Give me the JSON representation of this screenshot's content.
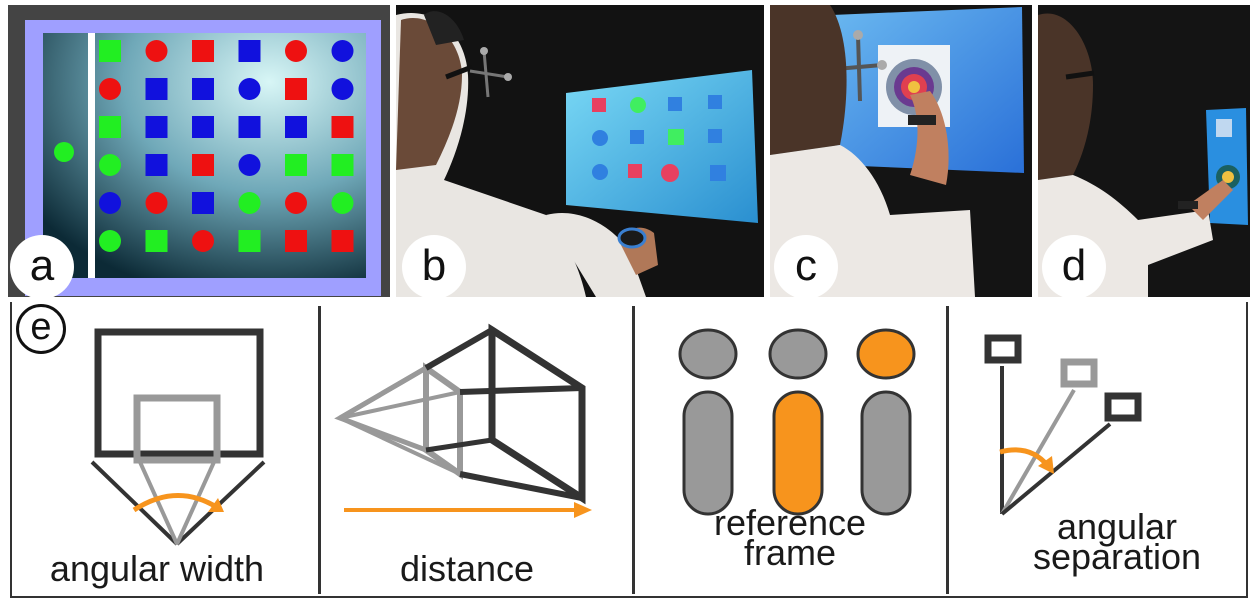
{
  "panels": {
    "a": {
      "label": "a"
    },
    "b": {
      "label": "b"
    },
    "c": {
      "label": "c"
    },
    "d": {
      "label": "d"
    },
    "e": {
      "label": "e"
    }
  },
  "captions": {
    "angular_width": "angular width",
    "distance": "distance",
    "reference_frame_line1": "reference",
    "reference_frame_line2": "frame",
    "angular_separation_line1": "angular",
    "angular_separation_line2": "separation"
  },
  "colors": {
    "accent_orange": "#f7941d",
    "gray": "#999999",
    "dark": "#333333",
    "grid_green": "#22ee22",
    "grid_red": "#ee1111",
    "grid_blue": "#1111dd",
    "frame_lavender": "#9f9fff"
  },
  "target_grid": [
    [
      "green-square",
      "red-circle",
      "red-square",
      "blue-square",
      "red-circle",
      "blue-circle"
    ],
    [
      "red-circle",
      "blue-square",
      "blue-square",
      "blue-circle",
      "red-square",
      "blue-circle"
    ],
    [
      "green-square",
      "blue-square",
      "blue-square",
      "blue-square",
      "blue-square",
      "red-square"
    ],
    [
      "green-circle",
      "blue-square",
      "red-square",
      "blue-circle",
      "green-square",
      "green-square"
    ],
    [
      "blue-circle",
      "red-circle",
      "blue-square",
      "green-circle",
      "red-circle",
      "green-circle"
    ],
    [
      "green-circle",
      "green-square",
      "red-circle",
      "green-square",
      "red-square",
      "red-square"
    ]
  ]
}
